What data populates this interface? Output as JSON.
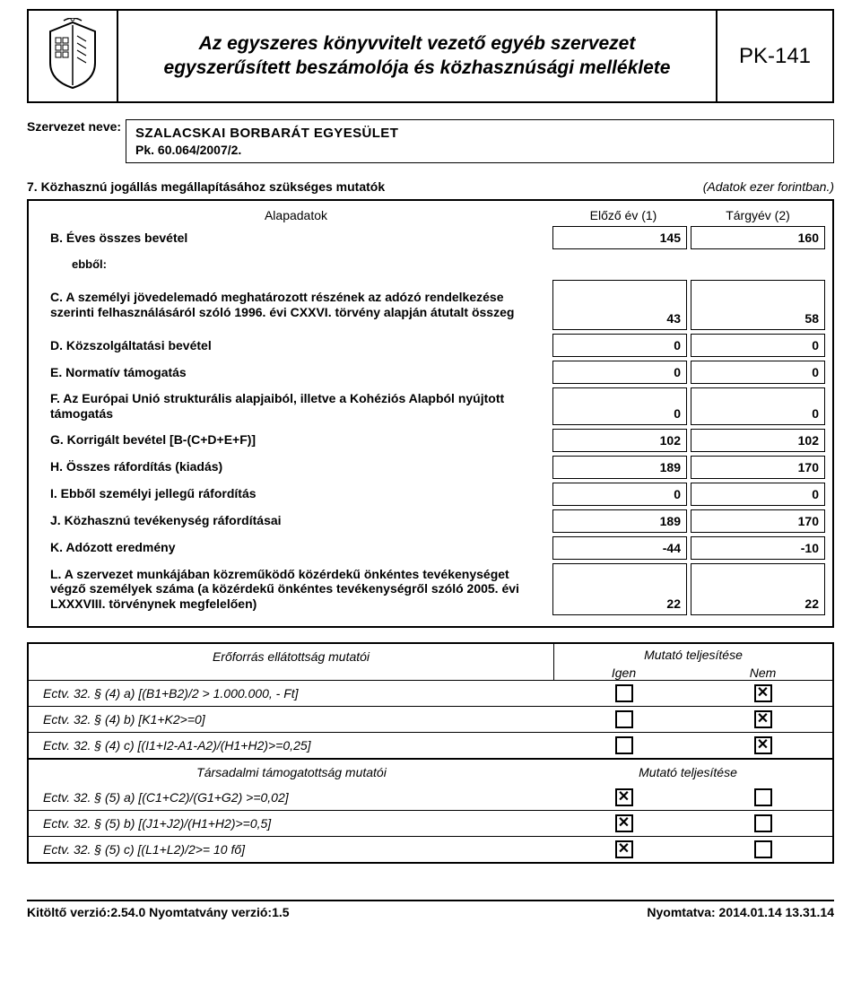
{
  "header": {
    "title_line1": "Az egyszeres könyvvitelt vezető egyéb szervezet",
    "title_line2": "egyszerűsített beszámolója és közhasznúsági melléklete",
    "form_code": "PK-141"
  },
  "org": {
    "label": "Szervezet neve:",
    "name_line1": "SZALACSKAI BORBARÁT EGYESÜLET",
    "name_line2": "Pk. 60.064/2007/2."
  },
  "section": {
    "title": "7. Közhasznú jogállás megállapításához szükséges mutatók",
    "note": "(Adatok ezer forintban.)",
    "col_alapadatok": "Alapadatok",
    "col_prev": "Előző év (1)",
    "col_curr": "Tárgyév (2)"
  },
  "rows": [
    {
      "label": "B. Éves összes bevétel",
      "prev": "145",
      "curr": "160"
    },
    {
      "label": "ebből:",
      "ebbol": true
    },
    {
      "label": "C. A személyi jövedelemadó meghatározott részének az adózó rendelkezése szerinti felhasználásáról szóló 1996. évi CXXVI. törvény alapján átutalt összeg",
      "prev": "43",
      "curr": "58",
      "tall": true
    },
    {
      "label": "D. Közszolgáltatási bevétel",
      "prev": "0",
      "curr": "0"
    },
    {
      "label": "E. Normatív támogatás",
      "prev": "0",
      "curr": "0"
    },
    {
      "label": "F. Az Európai Unió strukturális alapjaiból, illetve a Kohéziós Alapból nyújtott támogatás",
      "prev": "0",
      "curr": "0"
    },
    {
      "label": "G. Korrigált bevétel [B-(C+D+E+F)]",
      "prev": "102",
      "curr": "102"
    },
    {
      "label": "H. Összes ráfordítás (kiadás)",
      "prev": "189",
      "curr": "170"
    },
    {
      "label": "I. Ebből személyi jellegű ráfordítás",
      "prev": "0",
      "curr": "0"
    },
    {
      "label": "J. Közhasznú tevékenység ráfordításai",
      "prev": "189",
      "curr": "170"
    },
    {
      "label": "K. Adózott eredmény",
      "prev": "-44",
      "curr": "-10"
    },
    {
      "label": "L. A szervezet munkájában közreműködő közérdekű önkéntes tevékenységet végző személyek száma (a közérdekű önkéntes tevékenységről szóló 2005. évi LXXXVIII. törvénynek megfelelően)",
      "prev": "22",
      "curr": "22",
      "tall": true
    }
  ],
  "indicators": {
    "header_left_1": "Erőforrás ellátottság mutatói",
    "header_right": "Mutató teljesítése",
    "igen": "Igen",
    "nem": "Nem",
    "group1": [
      {
        "label": "Ectv. 32. § (4) a) [(B1+B2)/2 > 1.000.000, - Ft]",
        "igen": false,
        "nem": true
      },
      {
        "label": "Ectv. 32. § (4) b) [K1+K2>=0]",
        "igen": false,
        "nem": true
      },
      {
        "label": "Ectv. 32. § (4) c) [(I1+I2-A1-A2)/(H1+H2)>=0,25]",
        "igen": false,
        "nem": true
      }
    ],
    "header_left_2": "Társadalmi támogatottság mutatói",
    "group2": [
      {
        "label": "Ectv. 32. § (5) a) [(C1+C2)/(G1+G2) >=0,02]",
        "igen": true,
        "nem": false
      },
      {
        "label": "Ectv. 32. § (5) b) [(J1+J2)/(H1+H2)>=0,5]",
        "igen": true,
        "nem": false
      },
      {
        "label": "Ectv. 32. § (5) c) [(L1+L2)/2>= 10 fő]",
        "igen": true,
        "nem": false
      }
    ]
  },
  "footer": {
    "left": "Kitöltő verzió:2.54.0 Nyomtatvány verzió:1.5",
    "right": "Nyomtatva: 2014.01.14 13.31.14"
  }
}
